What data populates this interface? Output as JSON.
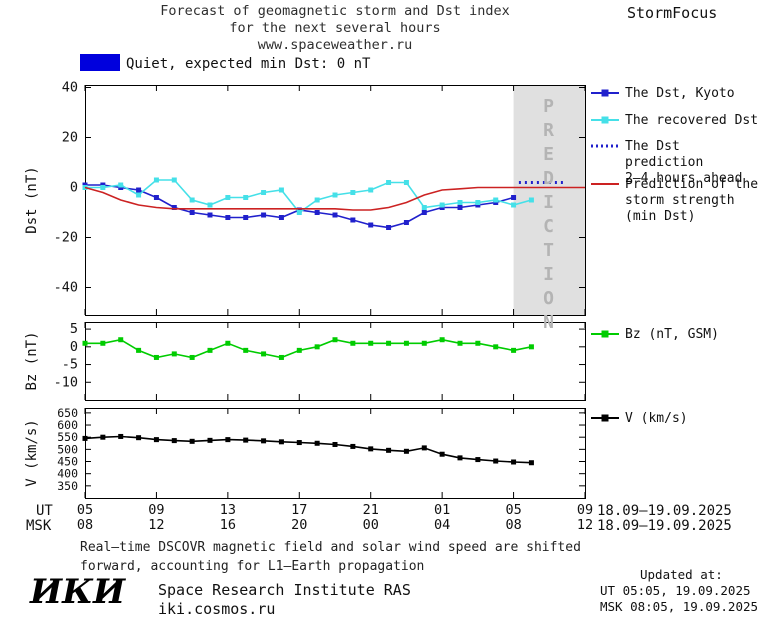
{
  "header": {
    "title_line1": "Forecast of geomagnetic storm and Dst index",
    "title_line2": "for the next several hours",
    "title_line3": "www.spaceweather.ru",
    "brand": "StormFocus"
  },
  "status": {
    "swatch_color": "#0000dd",
    "label": "Quiet, expected min Dst: 0 nT"
  },
  "colors": {
    "dst_kyoto": "#2020cc",
    "recovered": "#45e0e8",
    "prediction_dotted": "#2020cc",
    "storm_strength": "#cc2222",
    "bz": "#00cc00",
    "v": "#000000",
    "prediction_band": "#e0e0e0",
    "prediction_text": "#b4b4b4"
  },
  "legend": {
    "items": [
      {
        "label": "The Dst, Kyoto",
        "marker": "solid-square",
        "color_key": "dst_kyoto"
      },
      {
        "label": "The recovered Dst",
        "marker": "solid-square",
        "color_key": "recovered"
      },
      {
        "label": "The Dst prediction\n2–4 hours ahead",
        "marker": "dotted",
        "color_key": "prediction_dotted"
      },
      {
        "label": "Prediction of the\nstorm strength\n(min Dst)",
        "marker": "solid",
        "color_key": "storm_strength"
      },
      {
        "label": "Bz (nT, GSM)",
        "marker": "solid-square",
        "color_key": "bz"
      },
      {
        "label": "V (km/s)",
        "marker": "solid-square",
        "color_key": "v"
      }
    ]
  },
  "chart_data": {
    "type": "line",
    "x_axis": {
      "hours": [
        0,
        4,
        8,
        12,
        16,
        20,
        24,
        28
      ],
      "ut_row_label": "UT",
      "msk_row_label": "MSK",
      "ut_labels": [
        "05",
        "09",
        "13",
        "17",
        "21",
        "01",
        "05",
        "09"
      ],
      "msk_labels": [
        "08",
        "12",
        "16",
        "20",
        "00",
        "04",
        "08",
        "12"
      ],
      "ut_dates": "18.09–19.09.2025",
      "msk_dates": "18.09–19.09.2025"
    },
    "panels": [
      {
        "id": "dst",
        "ylabel": "Dst (nT)",
        "ylim": [
          -51,
          41
        ],
        "yticks": [
          40,
          20,
          0,
          -20,
          -40
        ],
        "xlim": [
          0,
          28
        ],
        "prediction_band": {
          "from": 24,
          "to": 28,
          "label": "PREDICTION"
        },
        "series": [
          {
            "name": "The Dst, Kyoto",
            "color_key": "dst_kyoto",
            "style": "solid",
            "marker": "square",
            "x": [
              0,
              1,
              2,
              3,
              4,
              5,
              6,
              7,
              8,
              9,
              10,
              11,
              12,
              13,
              14,
              15,
              16,
              17,
              18,
              19,
              20,
              21,
              22,
              23,
              24
            ],
            "y": [
              1,
              1,
              0,
              -1,
              -4,
              -8,
              -10,
              -11,
              -12,
              -12,
              -11,
              -12,
              -9,
              -10,
              -11,
              -13,
              -15,
              -16,
              -14,
              -10,
              -8,
              -8,
              -7,
              -6,
              -4
            ]
          },
          {
            "name": "The recovered Dst",
            "color_key": "recovered",
            "style": "solid",
            "marker": "square",
            "x": [
              0,
              1,
              2,
              3,
              4,
              5,
              6,
              7,
              8,
              9,
              10,
              11,
              12,
              13,
              14,
              15,
              16,
              17,
              18,
              19,
              20,
              21,
              22,
              23,
              24,
              25
            ],
            "y": [
              0,
              0,
              1,
              -3,
              3,
              3,
              -5,
              -7,
              -4,
              -4,
              -2,
              -1,
              -10,
              -5,
              -3,
              -2,
              -1,
              2,
              2,
              -8,
              -7,
              -6,
              -6,
              -5,
              -7,
              -5
            ]
          },
          {
            "name": "The Dst prediction 2–4 hours ahead",
            "color_key": "prediction_dotted",
            "style": "dotted",
            "marker": "none",
            "x": [
              24.3,
              26.8
            ],
            "y": [
              2,
              2
            ]
          },
          {
            "name": "Prediction of the storm strength (min Dst)",
            "color_key": "storm_strength",
            "style": "solid",
            "marker": "none",
            "x": [
              0,
              1,
              2,
              3,
              4,
              5,
              6,
              7,
              8,
              9,
              10,
              11,
              12,
              13,
              14,
              15,
              16,
              17,
              18,
              19,
              20,
              21,
              22,
              23,
              24,
              25,
              26,
              27,
              28
            ],
            "y": [
              0,
              -2,
              -5,
              -7,
              -8,
              -8.5,
              -8.5,
              -8.5,
              -8.5,
              -8.5,
              -8.5,
              -8.5,
              -8.5,
              -8.5,
              -8.5,
              -9,
              -9,
              -8,
              -6,
              -3,
              -1,
              -0.5,
              0,
              0,
              0,
              0,
              0,
              0,
              0
            ]
          }
        ]
      },
      {
        "id": "bz",
        "ylabel": "Bz (nT)",
        "ylim": [
          -15,
          7
        ],
        "yticks": [
          5,
          0,
          -5,
          -10
        ],
        "xlim": [
          0,
          28
        ],
        "series": [
          {
            "name": "Bz (nT, GSM)",
            "color_key": "bz",
            "style": "solid",
            "marker": "square",
            "x": [
              0,
              1,
              2,
              3,
              4,
              5,
              6,
              7,
              8,
              9,
              10,
              11,
              12,
              13,
              14,
              15,
              16,
              17,
              18,
              19,
              20,
              21,
              22,
              23,
              24,
              25
            ],
            "y": [
              1,
              1,
              2,
              -1,
              -3,
              -2,
              -3,
              -1,
              1,
              -1,
              -2,
              -3,
              -1,
              0,
              2,
              1,
              1,
              1,
              1,
              1,
              2,
              1,
              1,
              0,
              -1,
              0
            ]
          }
        ]
      },
      {
        "id": "v",
        "ylabel": "V (km/s)",
        "ylim": [
          300,
          670
        ],
        "yticks": [
          650,
          600,
          550,
          500,
          450,
          400,
          350
        ],
        "xlim": [
          0,
          28
        ],
        "series": [
          {
            "name": "V (km/s)",
            "color_key": "v",
            "style": "solid",
            "marker": "square",
            "x": [
              0,
              1,
              2,
              3,
              4,
              5,
              6,
              7,
              8,
              9,
              10,
              11,
              12,
              13,
              14,
              15,
              16,
              17,
              18,
              19,
              20,
              21,
              22,
              23,
              24,
              25
            ],
            "y": [
              545,
              550,
              553,
              548,
              540,
              536,
              533,
              537,
              540,
              538,
              535,
              531,
              528,
              525,
              520,
              512,
              502,
              496,
              492,
              506,
              480,
              465,
              458,
              452,
              448,
              445
            ]
          }
        ]
      }
    ]
  },
  "footnote": {
    "line1": "Real–time DSCOVR magnetic field and solar wind speed are shifted",
    "line2": "forward, accounting for L1–Earth propagation"
  },
  "footer": {
    "logo": "ИКИ",
    "institute": "Space Research Institute RAS",
    "site": "iki.cosmos.ru",
    "updated_label": "Updated at:",
    "updated_ut": "UT  05:05, 19.09.2025",
    "updated_msk": "MSK 08:05, 19.09.2025"
  }
}
